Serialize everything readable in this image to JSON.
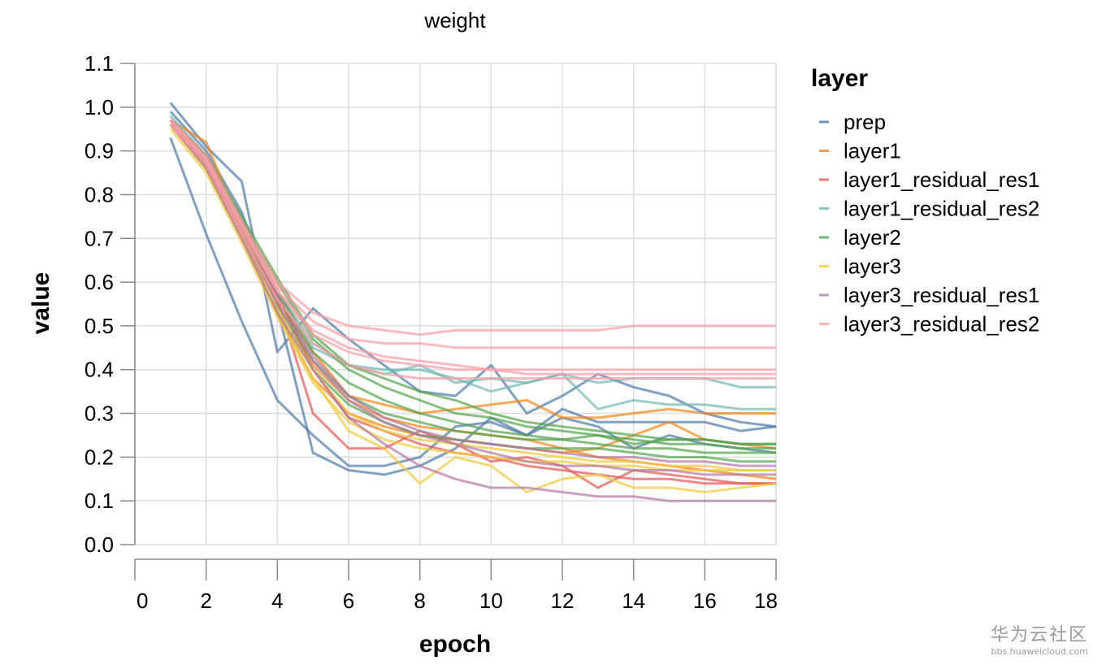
{
  "watermark": {
    "brand": "华为云社区",
    "url": "bbs.huaweicloud.com"
  },
  "chart_data": {
    "type": "line",
    "title": "weight",
    "xlabel": "epoch",
    "ylabel": "value",
    "xlim": [
      0,
      18
    ],
    "ylim": [
      0,
      1.1
    ],
    "xticks": [
      0,
      2,
      4,
      6,
      8,
      10,
      12,
      14,
      16,
      18
    ],
    "xtick_labels": [
      "0",
      "2",
      "4",
      "6",
      "8",
      "10",
      "12",
      "14",
      "16",
      "18"
    ],
    "yticks": [
      0,
      0.1,
      0.2,
      0.3,
      0.4,
      0.5,
      0.6,
      0.7,
      0.8,
      0.9,
      1.0,
      1.1
    ],
    "ytick_labels": [
      "0.0",
      "0.1",
      "0.2",
      "0.3",
      "0.4",
      "0.5",
      "0.6",
      "0.7",
      "0.8",
      "0.9",
      "1.0",
      "1.1"
    ],
    "grid": true,
    "legend_title": "layer",
    "legend_position": "right",
    "x": [
      1,
      2,
      3,
      4,
      5,
      6,
      7,
      8,
      9,
      10,
      11,
      12,
      13,
      14,
      15,
      16,
      17,
      18
    ],
    "series": [
      {
        "name": "prep",
        "color": "#4c78a8",
        "lines": [
          [
            1.01,
            0.91,
            0.83,
            0.44,
            0.54,
            0.47,
            0.41,
            0.35,
            0.34,
            0.41,
            0.3,
            0.34,
            0.39,
            0.36,
            0.34,
            0.3,
            0.28,
            0.27
          ],
          [
            0.93,
            0.71,
            0.51,
            0.33,
            0.25,
            0.18,
            0.18,
            0.2,
            0.27,
            0.28,
            0.25,
            0.31,
            0.28,
            0.28,
            0.28,
            0.28,
            0.26,
            0.27
          ],
          [
            0.99,
            0.9,
            0.76,
            0.54,
            0.21,
            0.17,
            0.16,
            0.18,
            0.22,
            0.29,
            0.25,
            0.29,
            0.27,
            0.22,
            0.25,
            0.23,
            0.22,
            0.21
          ]
        ]
      },
      {
        "name": "layer1",
        "color": "#f58518",
        "lines": [
          [
            0.97,
            0.92,
            0.72,
            0.56,
            0.44,
            0.34,
            0.32,
            0.3,
            0.31,
            0.32,
            0.33,
            0.29,
            0.29,
            0.3,
            0.31,
            0.3,
            0.3,
            0.3
          ],
          [
            0.96,
            0.86,
            0.7,
            0.53,
            0.38,
            0.3,
            0.27,
            0.25,
            0.24,
            0.23,
            0.22,
            0.21,
            0.22,
            0.25,
            0.28,
            0.24,
            0.23,
            0.22
          ],
          [
            0.97,
            0.88,
            0.73,
            0.57,
            0.41,
            0.33,
            0.29,
            0.27,
            0.26,
            0.25,
            0.24,
            0.22,
            0.2,
            0.19,
            0.18,
            0.17,
            0.16,
            0.15
          ]
        ]
      },
      {
        "name": "layer1_residual_res1",
        "color": "#e45756",
        "lines": [
          [
            0.97,
            0.87,
            0.72,
            0.56,
            0.3,
            0.22,
            0.22,
            0.26,
            0.23,
            0.19,
            0.2,
            0.18,
            0.13,
            0.17,
            0.16,
            0.15,
            0.14,
            0.14
          ],
          [
            0.96,
            0.89,
            0.73,
            0.57,
            0.4,
            0.29,
            0.26,
            0.23,
            0.21,
            0.2,
            0.18,
            0.17,
            0.16,
            0.15,
            0.15,
            0.14,
            0.14,
            0.14
          ]
        ]
      },
      {
        "name": "layer1_residual_res2",
        "color": "#72b7b2",
        "lines": [
          [
            0.98,
            0.89,
            0.74,
            0.58,
            0.46,
            0.41,
            0.4,
            0.4,
            0.38,
            0.35,
            0.37,
            0.39,
            0.31,
            0.33,
            0.32,
            0.32,
            0.31,
            0.31
          ],
          [
            0.97,
            0.88,
            0.75,
            0.58,
            0.45,
            0.41,
            0.39,
            0.41,
            0.37,
            0.38,
            0.37,
            0.39,
            0.37,
            0.38,
            0.38,
            0.38,
            0.36,
            0.36
          ]
        ]
      },
      {
        "name": "layer2",
        "color": "#54a24b",
        "lines": [
          [
            0.97,
            0.89,
            0.74,
            0.6,
            0.47,
            0.4,
            0.36,
            0.33,
            0.3,
            0.29,
            0.27,
            0.26,
            0.25,
            0.24,
            0.23,
            0.23,
            0.22,
            0.22
          ],
          [
            0.96,
            0.88,
            0.73,
            0.58,
            0.44,
            0.37,
            0.33,
            0.3,
            0.28,
            0.26,
            0.25,
            0.24,
            0.23,
            0.22,
            0.22,
            0.21,
            0.21,
            0.21
          ],
          [
            0.97,
            0.88,
            0.72,
            0.57,
            0.42,
            0.34,
            0.3,
            0.28,
            0.26,
            0.25,
            0.24,
            0.24,
            0.25,
            0.23,
            0.24,
            0.24,
            0.23,
            0.23
          ],
          [
            0.96,
            0.87,
            0.71,
            0.55,
            0.4,
            0.32,
            0.28,
            0.25,
            0.24,
            0.23,
            0.22,
            0.22,
            0.22,
            0.21,
            0.2,
            0.2,
            0.19,
            0.19
          ],
          [
            0.97,
            0.89,
            0.75,
            0.61,
            0.48,
            0.41,
            0.38,
            0.35,
            0.33,
            0.3,
            0.28,
            0.27,
            0.26,
            0.25,
            0.24,
            0.24,
            0.23,
            0.23
          ]
        ]
      },
      {
        "name": "layer3",
        "color": "#eeca3b",
        "lines": [
          [
            0.96,
            0.86,
            0.7,
            0.53,
            0.38,
            0.26,
            0.22,
            0.14,
            0.2,
            0.18,
            0.12,
            0.15,
            0.16,
            0.13,
            0.13,
            0.12,
            0.13,
            0.14
          ],
          [
            0.95,
            0.85,
            0.69,
            0.52,
            0.37,
            0.28,
            0.24,
            0.22,
            0.21,
            0.2,
            0.19,
            0.19,
            0.18,
            0.18,
            0.17,
            0.17,
            0.17,
            0.17
          ],
          [
            0.96,
            0.86,
            0.71,
            0.54,
            0.4,
            0.3,
            0.26,
            0.24,
            0.23,
            0.22,
            0.21,
            0.2,
            0.19,
            0.19,
            0.18,
            0.18,
            0.17,
            0.17
          ]
        ]
      },
      {
        "name": "layer3_residual_res1",
        "color": "#b279a2",
        "lines": [
          [
            0.96,
            0.86,
            0.7,
            0.53,
            0.4,
            0.29,
            0.23,
            0.18,
            0.15,
            0.13,
            0.13,
            0.12,
            0.11,
            0.11,
            0.1,
            0.1,
            0.1,
            0.1
          ],
          [
            0.96,
            0.87,
            0.71,
            0.55,
            0.42,
            0.33,
            0.28,
            0.25,
            0.23,
            0.21,
            0.19,
            0.18,
            0.18,
            0.17,
            0.17,
            0.16,
            0.16,
            0.16
          ],
          [
            0.97,
            0.88,
            0.73,
            0.57,
            0.43,
            0.34,
            0.29,
            0.26,
            0.24,
            0.23,
            0.22,
            0.21,
            0.2,
            0.2,
            0.19,
            0.19,
            0.18,
            0.18
          ]
        ]
      },
      {
        "name": "layer3_residual_res2",
        "color": "#ff9da6",
        "lines": [
          [
            0.97,
            0.89,
            0.74,
            0.6,
            0.53,
            0.5,
            0.49,
            0.48,
            0.49,
            0.49,
            0.49,
            0.49,
            0.49,
            0.5,
            0.5,
            0.5,
            0.5,
            0.5
          ],
          [
            0.96,
            0.88,
            0.73,
            0.59,
            0.51,
            0.47,
            0.46,
            0.46,
            0.45,
            0.45,
            0.45,
            0.45,
            0.45,
            0.45,
            0.45,
            0.45,
            0.45,
            0.45
          ],
          [
            0.97,
            0.88,
            0.72,
            0.58,
            0.49,
            0.45,
            0.43,
            0.42,
            0.41,
            0.4,
            0.4,
            0.4,
            0.4,
            0.4,
            0.4,
            0.4,
            0.4,
            0.4
          ],
          [
            0.96,
            0.87,
            0.71,
            0.56,
            0.46,
            0.41,
            0.39,
            0.38,
            0.38,
            0.38,
            0.38,
            0.38,
            0.38,
            0.38,
            0.38,
            0.38,
            0.38,
            0.38
          ],
          [
            0.97,
            0.88,
            0.73,
            0.58,
            0.48,
            0.44,
            0.42,
            0.41,
            0.4,
            0.4,
            0.39,
            0.39,
            0.39,
            0.39,
            0.39,
            0.39,
            0.39,
            0.39
          ]
        ]
      }
    ]
  }
}
